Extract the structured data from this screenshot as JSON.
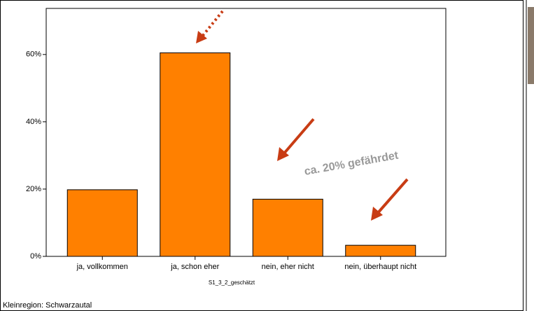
{
  "chart_data": {
    "type": "bar",
    "categories": [
      "ja, vollkommen",
      "ja, schon eher",
      "nein, eher nicht",
      "nein, überhaupt nicht"
    ],
    "values": [
      19.8,
      60.5,
      17.0,
      3.3
    ],
    "color": "#ff8000",
    "ylim": [
      0,
      73.7
    ],
    "yticks": [
      {
        "value": 0,
        "label": "0%"
      },
      {
        "value": 20,
        "label": "20%"
      },
      {
        "value": 40,
        "label": "40%"
      },
      {
        "value": 60,
        "label": "60%"
      }
    ],
    "x_label": "S1_3_2_geschätzt",
    "annotation": "ca. 20% gefährdet",
    "footer": "Kleinregion: Schwarzautal"
  }
}
